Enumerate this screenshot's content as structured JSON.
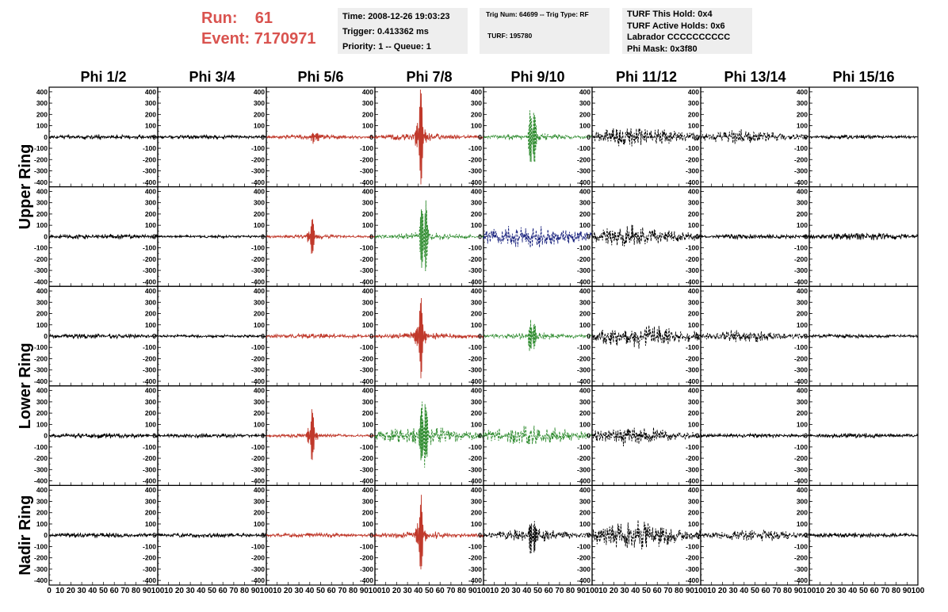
{
  "run_info": {
    "run_label": "Run:",
    "run_value": "61",
    "event_label": "Event:",
    "event_value": "7170971",
    "color": "#d9534f"
  },
  "trigger_box": {
    "time": "Time: 2008-12-26 19:03:23",
    "trigger": "Trigger: 0.413362 ms",
    "priority": "Priority: 1 -- Queue: 1"
  },
  "trig_num_box": {
    "trig_line": "Trig Num: 64699 -- Trig Type: RF",
    "turf_line": "TURF: 195780"
  },
  "turf_box": {
    "this_hold": "TURF This Hold: 0x4",
    "active_holds": "TURF Active Holds: 0x6",
    "labrador": "Labrador CCCCCCCCCC",
    "phi_mask": "Phi Mask: 0x3f80"
  },
  "chart_data": {
    "type": "line",
    "columns": [
      "Phi 1/2",
      "Phi 3/4",
      "Phi 5/6",
      "Phi 7/8",
      "Phi 9/10",
      "Phi 11/12",
      "Phi 13/14",
      "Phi 15/16"
    ],
    "ring_labels": [
      "Upper Ring",
      "Lower Ring",
      "Nadir Ring"
    ],
    "rows_per_ring": [
      2,
      2,
      1
    ],
    "y_ticks": [
      400,
      300,
      200,
      100,
      0,
      -100,
      -200,
      -300,
      -400
    ],
    "ylim": [
      -420,
      420
    ],
    "xlim": [
      0,
      100
    ],
    "x_ticks_first": [
      "0",
      "10",
      "20",
      "30",
      "40",
      "50",
      "60",
      "70",
      "80",
      "90",
      "100"
    ],
    "x_ticks_other": [
      "10",
      "20",
      "30",
      "40",
      "50",
      "60",
      "70",
      "80",
      "90",
      "100"
    ],
    "colors": {
      "black": "#000000",
      "red": "#c0392b",
      "green": "#2e8b2e",
      "blue": "#1a237e"
    },
    "panels": [
      [
        {
          "color": "black",
          "amp": 25,
          "center": 45,
          "spread": 50,
          "peak": 0
        },
        {
          "color": "black",
          "amp": 20,
          "center": 45,
          "spread": 50,
          "peak": 0
        },
        {
          "color": "red",
          "amp": 25,
          "center": 45,
          "spread": 40,
          "peak": 60
        },
        {
          "color": "red",
          "amp": 40,
          "center": 42,
          "spread": 30,
          "peak": 420
        },
        {
          "color": "green",
          "amp": 35,
          "center": 45,
          "spread": 35,
          "peak": 330
        },
        {
          "color": "black",
          "amp": 100,
          "center": 40,
          "spread": 35,
          "peak": 0
        },
        {
          "color": "black",
          "amp": 70,
          "center": 40,
          "spread": 30,
          "peak": 0
        },
        {
          "color": "black",
          "amp": 20,
          "center": 45,
          "spread": 50,
          "peak": 0
        }
      ],
      [
        {
          "color": "black",
          "amp": 25,
          "center": 45,
          "spread": 50,
          "peak": 0
        },
        {
          "color": "black",
          "amp": 15,
          "center": 45,
          "spread": 50,
          "peak": 0
        },
        {
          "color": "red",
          "amp": 20,
          "center": 42,
          "spread": 40,
          "peak": 150
        },
        {
          "color": "green",
          "amp": 40,
          "center": 45,
          "spread": 30,
          "peak": 420
        },
        {
          "color": "blue",
          "amp": 120,
          "center": 40,
          "spread": 35,
          "peak": 0
        },
        {
          "color": "black",
          "amp": 110,
          "center": 35,
          "spread": 30,
          "peak": 0
        },
        {
          "color": "black",
          "amp": 25,
          "center": 45,
          "spread": 50,
          "peak": 0
        },
        {
          "color": "black",
          "amp": 40,
          "center": 50,
          "spread": 40,
          "peak": 0
        }
      ],
      [
        {
          "color": "black",
          "amp": 25,
          "center": 45,
          "spread": 50,
          "peak": 0
        },
        {
          "color": "black",
          "amp": 15,
          "center": 45,
          "spread": 50,
          "peak": 0
        },
        {
          "color": "red",
          "amp": 25,
          "center": 45,
          "spread": 40,
          "peak": 0
        },
        {
          "color": "red",
          "amp": 40,
          "center": 42,
          "spread": 30,
          "peak": 330
        },
        {
          "color": "green",
          "amp": 35,
          "center": 45,
          "spread": 35,
          "peak": 180
        },
        {
          "color": "black",
          "amp": 120,
          "center": 40,
          "spread": 35,
          "peak": 0
        },
        {
          "color": "black",
          "amp": 60,
          "center": 40,
          "spread": 30,
          "peak": 0
        },
        {
          "color": "black",
          "amp": 20,
          "center": 45,
          "spread": 50,
          "peak": 0
        }
      ],
      [
        {
          "color": "black",
          "amp": 25,
          "center": 45,
          "spread": 50,
          "peak": 0
        },
        {
          "color": "black",
          "amp": 20,
          "center": 45,
          "spread": 50,
          "peak": 0
        },
        {
          "color": "red",
          "amp": 20,
          "center": 42,
          "spread": 40,
          "peak": 230
        },
        {
          "color": "green",
          "amp": 100,
          "center": 45,
          "spread": 30,
          "peak": 420
        },
        {
          "color": "green",
          "amp": 100,
          "center": 40,
          "spread": 35,
          "peak": 0
        },
        {
          "color": "black",
          "amp": 100,
          "center": 35,
          "spread": 30,
          "peak": 0
        },
        {
          "color": "black",
          "amp": 20,
          "center": 45,
          "spread": 50,
          "peak": 0
        },
        {
          "color": "black",
          "amp": 25,
          "center": 45,
          "spread": 50,
          "peak": 0
        }
      ],
      [
        {
          "color": "black",
          "amp": 25,
          "center": 45,
          "spread": 50,
          "peak": 0
        },
        {
          "color": "black",
          "amp": 25,
          "center": 45,
          "spread": 50,
          "peak": 0
        },
        {
          "color": "red",
          "amp": 25,
          "center": 45,
          "spread": 40,
          "peak": 0
        },
        {
          "color": "red",
          "amp": 40,
          "center": 42,
          "spread": 30,
          "peak": 330
        },
        {
          "color": "black",
          "amp": 60,
          "center": 45,
          "spread": 35,
          "peak": 160
        },
        {
          "color": "black",
          "amp": 140,
          "center": 40,
          "spread": 35,
          "peak": 0
        },
        {
          "color": "black",
          "amp": 60,
          "center": 50,
          "spread": 30,
          "peak": 0
        },
        {
          "color": "black",
          "amp": 25,
          "center": 45,
          "spread": 50,
          "peak": 0
        }
      ]
    ]
  }
}
